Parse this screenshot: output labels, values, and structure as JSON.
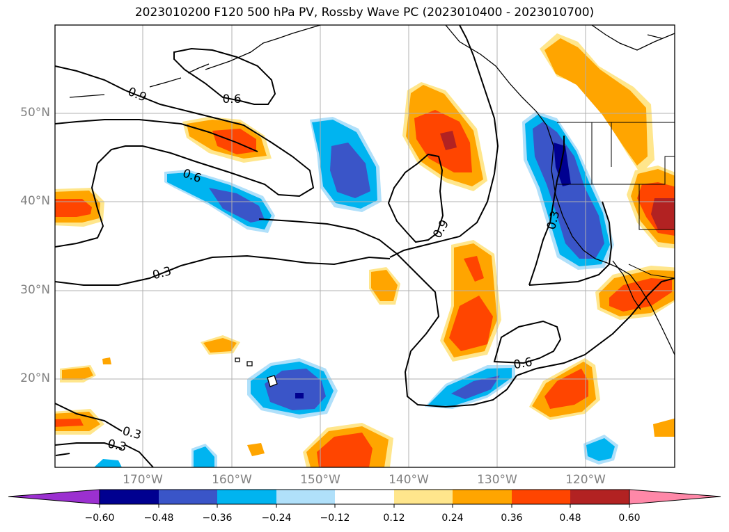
{
  "title": "2023010200 F120 500 hPa PV, Rossby Wave PC (2023010400 - 2023010700)",
  "lat_labels": [
    "50°N",
    "40°N",
    "30°N",
    "20°N"
  ],
  "lon_labels": [
    "170°W",
    "160°W",
    "150°W",
    "140°W",
    "130°W",
    "120°W"
  ],
  "contour_labels": [
    "0.9",
    "0.6",
    "0.6",
    "0.3",
    "0.9",
    "0.3",
    "0.6",
    "0.3",
    "0.3"
  ],
  "colorbar": {
    "ticks": [
      "−0.60",
      "−0.48",
      "−0.36",
      "−0.24",
      "−0.12",
      "0.12",
      "0.24",
      "0.36",
      "0.48",
      "0.60"
    ],
    "colors": [
      "#9b30d0",
      "#000090",
      "#3a55c8",
      "#00b4f0",
      "#b0e0fa",
      "#ffffff",
      "#ffe68c",
      "#ffa500",
      "#ff4500",
      "#b22222",
      "#ff88a8"
    ]
  },
  "colors": {
    "neg_weak": "#b0e0fa",
    "neg_mid": "#00b4f0",
    "neg_strong": "#3a55c8",
    "neg_max": "#000090",
    "pos_weak": "#ffe68c",
    "pos_mid": "#ffa500",
    "pos_strong": "#ff4500",
    "pos_max": "#b22222"
  }
}
